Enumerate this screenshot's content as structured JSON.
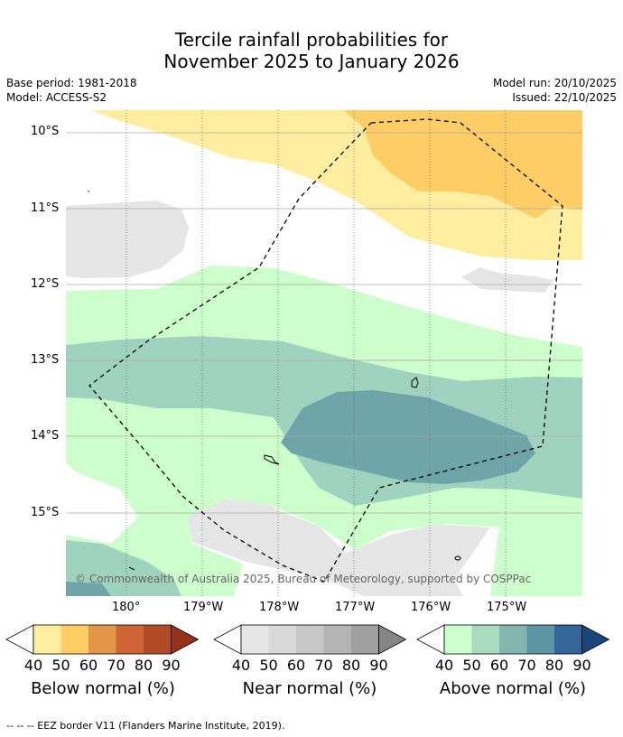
{
  "title": {
    "line1": "Tercile rainfall probabilities for",
    "line2": "November 2025 to January 2026"
  },
  "meta": {
    "base_period": "Base period: 1981-2018",
    "model": "Model: ACCESS-S2",
    "model_run": "Model run: 20/10/2025",
    "issued": "Issued: 22/10/2025"
  },
  "map": {
    "lat_labels": [
      "10°S",
      "11°S",
      "12°S",
      "13°S",
      "14°S",
      "15°S"
    ],
    "lon_labels": [
      "180°",
      "179°W",
      "178°W",
      "177°W",
      "176°W",
      "175°W"
    ],
    "attribution": "© Commonwealth of Australia 2025, Bureau of Meteorology, supported by COSPPac",
    "colors": {
      "below_40": "#ffeea0",
      "below_50": "#ffcd66",
      "near_40": "#e6e6e6",
      "above_40": "#ccffcc",
      "above_50": "#9fd3bf",
      "above_60": "#6fa5a8",
      "grid": "#aaaaaa"
    }
  },
  "colorbars": [
    {
      "title": "Below normal (%)",
      "ticks": [
        "40",
        "50",
        "60",
        "70",
        "80",
        "90"
      ],
      "colors": [
        "#ffeea0",
        "#ffcd66",
        "#e39548",
        "#cf6434",
        "#b24a28",
        "#96311c"
      ]
    },
    {
      "title": "Near normal (%)",
      "ticks": [
        "40",
        "50",
        "60",
        "70",
        "80",
        "90"
      ],
      "colors": [
        "#e6e6e6",
        "#d9d9d9",
        "#c8c8c8",
        "#b4b4b4",
        "#a0a0a0",
        "#868686"
      ]
    },
    {
      "title": "Above normal (%)",
      "ticks": [
        "40",
        "50",
        "60",
        "70",
        "80",
        "90"
      ],
      "colors": [
        "#ccffcc",
        "#a9dcbe",
        "#82b6ae",
        "#5c96a3",
        "#336699",
        "#17477a"
      ]
    }
  ],
  "footer": "--  --  -- EEZ border V11 (Flanders Marine Institute, 2019)."
}
